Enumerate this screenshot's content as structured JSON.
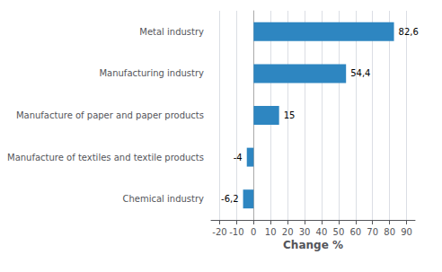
{
  "chart_data": {
    "type": "bar",
    "orientation": "horizontal",
    "categories": [
      "Chemical industry",
      "Manufacture of textiles and textile products",
      "Manufacture of paper and paper products",
      "Manufacturing industry",
      "Metal industry"
    ],
    "values": [
      -6.2,
      -4,
      15,
      54.4,
      82.6
    ],
    "value_labels": [
      "-6,2",
      "-4",
      "15",
      "54,4",
      "82,6"
    ],
    "color": "#2e86c1",
    "xlabel": "Change %",
    "xlim": [
      -25,
      95
    ],
    "xticks": [
      -20,
      -10,
      0,
      10,
      20,
      30,
      40,
      50,
      60,
      70,
      80,
      90
    ],
    "grid": true,
    "data_labels": true
  }
}
